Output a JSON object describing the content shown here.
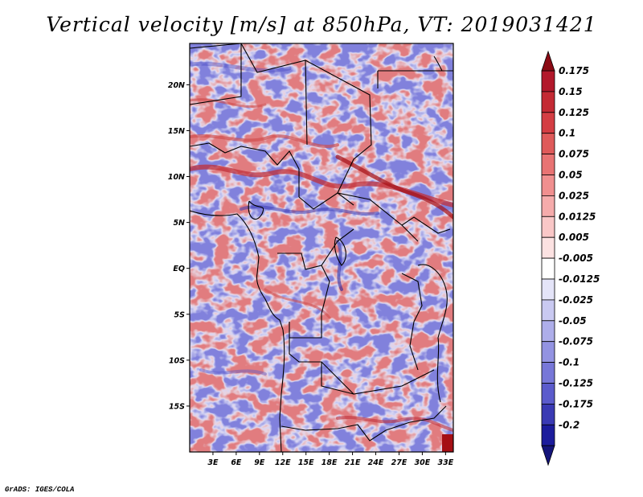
{
  "title": "Vertical velocity [m/s] at 850hPa, VT: 2019031421",
  "credit": "GrADS: IGES/COLA",
  "colors": {
    "positive_strong": "#a50f15",
    "positive_light": "#fcd5d5",
    "negative_light": "#d9d9f5",
    "negative_strong": "#1c1c9c",
    "coastline": "#000000"
  },
  "map": {
    "lon_range": [
      0,
      34
    ],
    "lat_range": [
      -20,
      24.5
    ],
    "lat_ticks": [
      {
        "value": 20,
        "label": "20N"
      },
      {
        "value": 15,
        "label": "15N"
      },
      {
        "value": 10,
        "label": "10N"
      },
      {
        "value": 5,
        "label": "5N"
      },
      {
        "value": 0,
        "label": "EQ"
      },
      {
        "value": -5,
        "label": "5S"
      },
      {
        "value": -10,
        "label": "10S"
      },
      {
        "value": -15,
        "label": "15S"
      }
    ],
    "lon_ticks": [
      {
        "value": 3,
        "label": "3E"
      },
      {
        "value": 6,
        "label": "6E"
      },
      {
        "value": 9,
        "label": "9E"
      },
      {
        "value": 12,
        "label": "12E"
      },
      {
        "value": 15,
        "label": "15E"
      },
      {
        "value": 18,
        "label": "18E"
      },
      {
        "value": 21,
        "label": "21E"
      },
      {
        "value": 24,
        "label": "24E"
      },
      {
        "value": 27,
        "label": "27E"
      },
      {
        "value": 30,
        "label": "30E"
      },
      {
        "value": 33,
        "label": "33E"
      }
    ]
  },
  "colorbar": {
    "levels": [
      {
        "label": "0.175",
        "color": "#b2182b"
      },
      {
        "label": "0.15",
        "color": "#c42a34"
      },
      {
        "label": "0.125",
        "color": "#d43d43"
      },
      {
        "label": "0.1",
        "color": "#df5a5a"
      },
      {
        "label": "0.075",
        "color": "#e87373"
      },
      {
        "label": "0.05",
        "color": "#f08f8f"
      },
      {
        "label": "0.025",
        "color": "#f5abab"
      },
      {
        "label": "0.0125",
        "color": "#f9c7c7"
      },
      {
        "label": "0.005",
        "color": "#fce2e2"
      },
      {
        "label": "-0.005",
        "color": "#ffffff"
      },
      {
        "label": "-0.0125",
        "color": "#e4e4f8"
      },
      {
        "label": "-0.025",
        "color": "#c9c9f1"
      },
      {
        "label": "-0.05",
        "color": "#aeaeea"
      },
      {
        "label": "-0.075",
        "color": "#9393e2"
      },
      {
        "label": "-0.1",
        "color": "#7777d8"
      },
      {
        "label": "-0.125",
        "color": "#5b5bcc"
      },
      {
        "label": "-0.175",
        "color": "#3a3ab4"
      },
      {
        "label": "-0.2",
        "color": "#1c1c9c"
      }
    ],
    "max_color": "#8b0a14",
    "min_color": "#14147a"
  }
}
